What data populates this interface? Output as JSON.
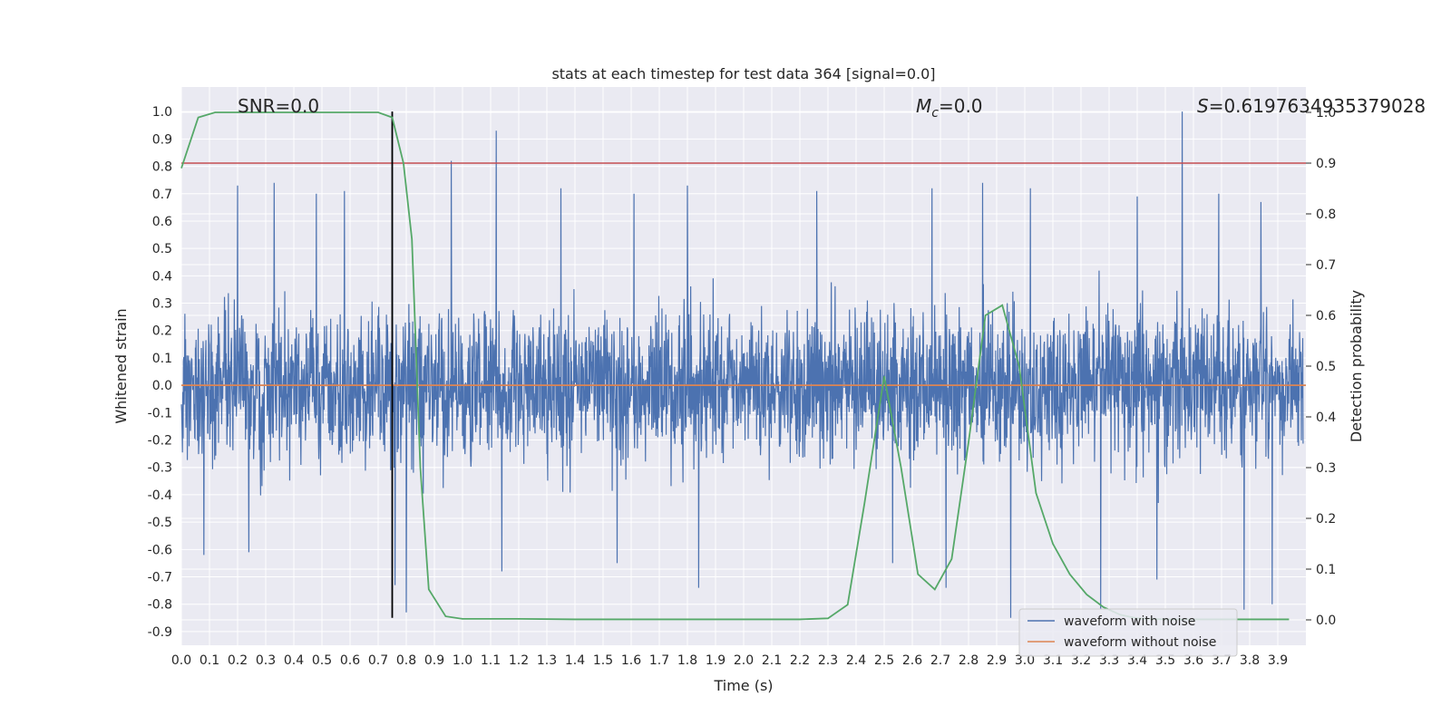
{
  "chart_data": {
    "type": "line",
    "title": "stats at each timestep for test data 364 [signal=0.0]",
    "xlabel": "Time (s)",
    "ylabel": "Whitened strain",
    "y2label": "Detection probability",
    "xlim": [
      0.0,
      4.0
    ],
    "ylim": [
      -0.95,
      1.09
    ],
    "y2lim": [
      -0.05,
      1.05
    ],
    "xticks": [
      "0.0",
      "0.1",
      "0.2",
      "0.3",
      "0.4",
      "0.5",
      "0.6",
      "0.7",
      "0.8",
      "0.9",
      "1.0",
      "1.1",
      "1.2",
      "1.3",
      "1.4",
      "1.5",
      "1.6",
      "1.7",
      "1.8",
      "1.9",
      "2.0",
      "2.1",
      "2.2",
      "2.3",
      "2.4",
      "2.5",
      "2.6",
      "2.7",
      "2.8",
      "2.9",
      "3.0",
      "3.1",
      "3.2",
      "3.3",
      "3.4",
      "3.5",
      "3.6",
      "3.7",
      "3.8",
      "3.9"
    ],
    "yticks": [
      "1.0",
      "0.9",
      "0.8",
      "0.7",
      "0.6",
      "0.5",
      "0.4",
      "0.3",
      "0.2",
      "0.1",
      "0.0",
      "-0.1",
      "-0.2",
      "-0.3",
      "-0.4",
      "-0.5",
      "-0.6",
      "-0.7",
      "-0.8",
      "-0.9"
    ],
    "y2ticks": [
      "1.0",
      "0.9",
      "0.8",
      "0.7",
      "0.6",
      "0.5",
      "0.4",
      "0.3",
      "0.2",
      "0.1",
      "0.0"
    ],
    "grid": true,
    "legend_position": "lower-right",
    "annotations": {
      "snr_text": "SNR=0.0",
      "mc_symbol": "M",
      "mc_subscript": "c",
      "mc_value": "=0.0",
      "s_symbol": "S",
      "s_value": "=0.6197634935379028"
    },
    "threshold_line": {
      "y2": 0.9,
      "color": "#c44e52"
    },
    "marker_line": {
      "x": 0.75,
      "ymin": -0.85,
      "ymax": 1.0,
      "color": "#000000"
    },
    "series": [
      {
        "name": "waveform with noise",
        "color": "#4c72b0",
        "axis": "left",
        "description": "dense whitened noise",
        "spikes_up": [
          [
            0.75,
            1.0
          ],
          [
            3.56,
            1.0
          ],
          [
            1.12,
            0.93
          ],
          [
            0.96,
            0.82
          ],
          [
            0.33,
            0.74
          ],
          [
            0.2,
            0.73
          ],
          [
            2.85,
            0.74
          ],
          [
            2.67,
            0.72
          ],
          [
            0.58,
            0.71
          ],
          [
            1.35,
            0.72
          ],
          [
            1.8,
            0.73
          ],
          [
            3.02,
            0.72
          ],
          [
            3.4,
            0.69
          ],
          [
            3.69,
            0.7
          ],
          [
            3.84,
            0.67
          ],
          [
            0.48,
            0.7
          ],
          [
            2.26,
            0.71
          ],
          [
            1.61,
            0.7
          ]
        ],
        "spikes_down": [
          [
            0.8,
            -0.83
          ],
          [
            0.76,
            -0.73
          ],
          [
            2.95,
            -0.85
          ],
          [
            3.78,
            -0.82
          ],
          [
            3.27,
            -0.82
          ],
          [
            3.88,
            -0.8
          ],
          [
            1.84,
            -0.74
          ],
          [
            2.72,
            -0.74
          ],
          [
            0.08,
            -0.62
          ],
          [
            0.24,
            -0.61
          ],
          [
            1.14,
            -0.68
          ],
          [
            2.53,
            -0.65
          ],
          [
            1.55,
            -0.65
          ],
          [
            3.47,
            -0.71
          ]
        ]
      },
      {
        "name": "waveform without noise",
        "color": "#dd8452",
        "axis": "left",
        "x": [
          0.0,
          4.0
        ],
        "y": [
          0.0,
          0.0
        ]
      },
      {
        "name": "",
        "color": "#55a868",
        "axis": "right",
        "x": [
          0.0,
          0.06,
          0.12,
          0.2,
          0.3,
          0.4,
          0.5,
          0.6,
          0.7,
          0.75,
          0.79,
          0.82,
          0.85,
          0.88,
          0.94,
          1.0,
          1.2,
          1.4,
          1.6,
          1.8,
          2.0,
          2.2,
          2.3,
          2.37,
          2.43,
          2.5,
          2.56,
          2.62,
          2.68,
          2.74,
          2.8,
          2.86,
          2.92,
          2.98,
          3.04,
          3.1,
          3.16,
          3.22,
          3.28,
          3.34,
          3.4,
          3.5,
          3.6,
          3.7,
          3.8,
          3.94
        ],
        "y": [
          0.89,
          0.99,
          1.0,
          1.0,
          1.0,
          1.0,
          1.0,
          1.0,
          1.0,
          0.99,
          0.9,
          0.75,
          0.3,
          0.06,
          0.007,
          0.002,
          0.002,
          0.001,
          0.001,
          0.001,
          0.001,
          0.001,
          0.003,
          0.03,
          0.23,
          0.48,
          0.3,
          0.09,
          0.06,
          0.12,
          0.35,
          0.6,
          0.62,
          0.5,
          0.25,
          0.15,
          0.09,
          0.05,
          0.025,
          0.01,
          0.003,
          0.001,
          0.001,
          0.001,
          0.001,
          0.001
        ]
      }
    ]
  }
}
